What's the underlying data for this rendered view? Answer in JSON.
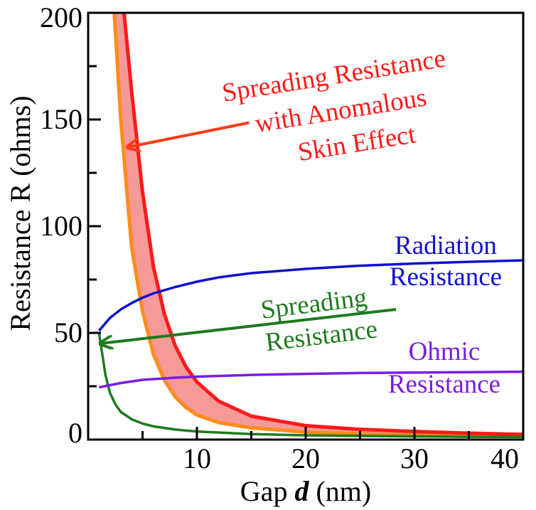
{
  "chart_data": {
    "type": "line",
    "xlabel_main": "Gap ",
    "xlabel_var": "d",
    "xlabel_unit": " (nm)",
    "ylabel": "Resistance R (ohms)",
    "xlim": [
      0,
      40
    ],
    "ylim": [
      0,
      200
    ],
    "x_major_ticks": [
      10,
      20,
      30,
      40
    ],
    "x_minor_ticks": [
      5,
      15,
      25,
      35
    ],
    "y_major_ticks": [
      0,
      50,
      100,
      150,
      200
    ],
    "y_minor_ticks": [
      25,
      75,
      125,
      175
    ],
    "x_tick_labels": [
      "10",
      "20",
      "30",
      "40"
    ],
    "y_tick_labels": [
      "0",
      "50",
      "100",
      "150",
      "200"
    ],
    "grid": false,
    "band": {
      "name": "Spreading Resistance with Anomalous Skin Effect",
      "fill_color": "#f59999",
      "upper_color": "#ff1a1a",
      "lower_color": "#ff8c1a",
      "upper": {
        "x": [
          3.3,
          4,
          5,
          6,
          7,
          8,
          9,
          10,
          12,
          15,
          20,
          25,
          30,
          35,
          40
        ],
        "y": [
          200,
          163,
          116,
          81,
          59,
          44,
          34,
          27,
          18,
          11,
          6.5,
          4.8,
          3.8,
          3.0,
          2.4
        ]
      },
      "lower": {
        "x": [
          2.4,
          3,
          4,
          5,
          6,
          7,
          8,
          9,
          10,
          12,
          15,
          20,
          25,
          30,
          35,
          40
        ],
        "y": [
          200,
          150,
          90,
          60,
          40,
          28,
          20,
          15,
          11.5,
          8,
          5.5,
          3.5,
          2.6,
          2.1,
          1.8,
          1.6
        ]
      }
    },
    "series": [
      {
        "name": "Radiation Resistance",
        "color": "#1010d0",
        "x": [
          1,
          2,
          3,
          4,
          5,
          6,
          8,
          10,
          12,
          15,
          20,
          25,
          30,
          35,
          40
        ],
        "y": [
          51,
          57,
          61,
          64,
          66.5,
          68.5,
          71.5,
          74,
          76,
          78,
          80,
          81.5,
          82.5,
          83.3,
          84
        ]
      },
      {
        "name": "Spreading Resistance",
        "color": "#1e7a1e",
        "x": [
          1,
          1.3,
          1.6,
          2,
          2.5,
          3,
          4,
          5,
          6,
          8,
          10,
          15,
          20,
          25,
          30,
          35,
          40
        ],
        "y": [
          50,
          40,
          30,
          22,
          16.5,
          13,
          9.5,
          7.5,
          6.2,
          4.7,
          3.8,
          2.6,
          2.0,
          1.7,
          1.5,
          1.3,
          1.2
        ]
      },
      {
        "name": "Ohmic Resistance",
        "color": "#7a1ee0",
        "x": [
          1,
          3,
          5,
          8,
          10,
          15,
          20,
          25,
          30,
          35,
          40
        ],
        "y": [
          24.5,
          26.5,
          28,
          29,
          29.5,
          30.3,
          30.8,
          31.2,
          31.4,
          31.6,
          31.8
        ]
      }
    ],
    "annotations": [
      {
        "lines": [
          "Spreading Resistance",
          "with Anomalous",
          "Skin Effect"
        ],
        "color": "#ff1a1a",
        "arrow_from": [
          14.8,
          148.5
        ],
        "arrow_to": [
          3.6,
          137
        ]
      },
      {
        "lines": [
          "Spreading",
          "Resistance"
        ],
        "color": "#1e7a1e",
        "arrow_from": [
          28.3,
          61
        ],
        "arrow_to": [
          1.1,
          45
        ]
      },
      {
        "lines": [
          "Radiation",
          "Resistance"
        ],
        "color": "#1010d0"
      },
      {
        "lines": [
          "Ohmic",
          "Resistance"
        ],
        "color": "#7a1ee0"
      }
    ]
  }
}
